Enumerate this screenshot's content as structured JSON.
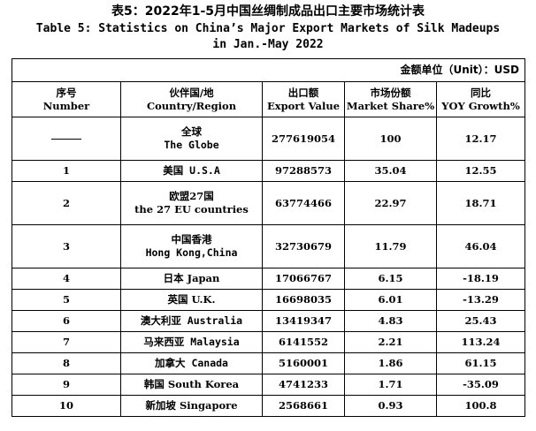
{
  "title": {
    "cn": "表5：2022年1-5月中国丝绸制成品出口主要市场统计表",
    "en_line1": "Table 5: Statistics on China’s Major Export Markets of Silk Madeups",
    "en_line2": "in Jan.-May 2022"
  },
  "unit_label": "金额单位（Unit）：USD",
  "headers": [
    {
      "cn": "序号",
      "en": "Number"
    },
    {
      "cn": "伙伴国/地",
      "en": "Country/Region"
    },
    {
      "cn": "出口额",
      "en": "Export Value"
    },
    {
      "cn": "市场份额",
      "en": "Market Share%"
    },
    {
      "cn": "同比",
      "en": "YOY Growth%"
    }
  ],
  "rows": [
    {
      "number": "",
      "region_line1": "全球",
      "region_line2": "The Globe",
      "export_value": "277619054",
      "market_share": "100",
      "yoy_growth": "12.17"
    },
    {
      "number": "1",
      "region": "美国 U.S.A",
      "export_value": "97288573",
      "market_share": "35.04",
      "yoy_growth": "12.55"
    },
    {
      "number": "2",
      "region_line1": "欧盟27国",
      "region_line2": "the 27 EU countries",
      "export_value": "63774466",
      "market_share": "22.97",
      "yoy_growth": "18.71"
    },
    {
      "number": "3",
      "region_line1": "中国香港",
      "region_line2": "Hong Kong,China",
      "export_value": "32730679",
      "market_share": "11.79",
      "yoy_growth": "46.04"
    },
    {
      "number": "4",
      "region": "日本 Japan",
      "export_value": "17066767",
      "market_share": "6.15",
      "yoy_growth": "-18.19"
    },
    {
      "number": "5",
      "region": "英国 U.K.",
      "export_value": "16698035",
      "market_share": "6.01",
      "yoy_growth": "-13.29"
    },
    {
      "number": "6",
      "region": "澳大利亚 Australia",
      "export_value": "13419347",
      "market_share": "4.83",
      "yoy_growth": "25.43"
    },
    {
      "number": "7",
      "region": "马来西亚 Malaysia",
      "export_value": "6141552",
      "market_share": "2.21",
      "yoy_growth": "113.24"
    },
    {
      "number": "8",
      "region": "加拿大 Canada",
      "export_value": "5160001",
      "market_share": "1.86",
      "yoy_growth": "61.15"
    },
    {
      "number": "9",
      "region": "韩国 South Korea",
      "export_value": "4741233",
      "market_share": "1.71",
      "yoy_growth": "-35.09"
    },
    {
      "number": "10",
      "region": "新加坡 Singapore",
      "export_value": "2568661",
      "market_share": "0.93",
      "yoy_growth": "100.8"
    }
  ]
}
